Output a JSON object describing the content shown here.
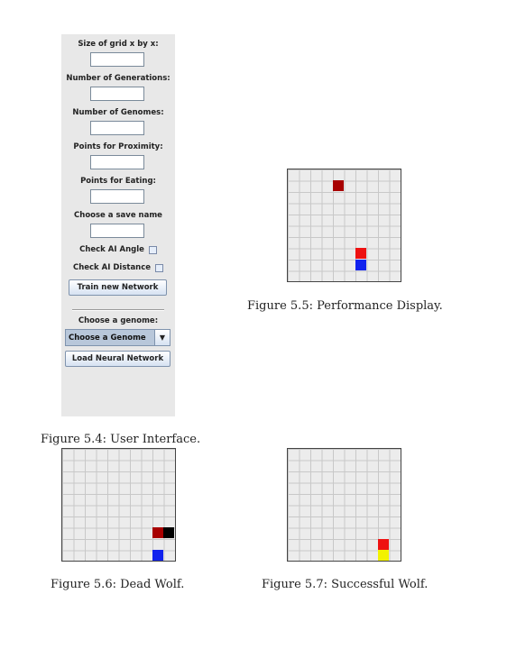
{
  "ui_panel": {
    "grid_size_label": "Size of grid x by x:",
    "grid_size_value": "",
    "generations_label": "Number of Generations:",
    "generations_value": "",
    "genomes_label": "Number of Genomes:",
    "genomes_value": "",
    "proximity_label": "Points for Proximity:",
    "proximity_value": "",
    "eating_label": "Points for Eating:",
    "eating_value": "",
    "save_name_label": "Choose a save name",
    "save_name_value": "",
    "check_angle_label": "Check AI Angle",
    "check_distance_label": "Check AI Distance",
    "train_button": "Train new Network",
    "choose_genome_label": "Choose a genome:",
    "genome_select_value": "Choose a Genome",
    "load_button": "Load Neural Network"
  },
  "captions": {
    "fig54": "Figure 5.4: User Interface.",
    "fig55": "Figure 5.5: Performance Display.",
    "fig56": "Figure 5.6: Dead Wolf.",
    "fig57": "Figure 5.7: Successful Wolf."
  },
  "colors": {
    "dark_red": "#a80000",
    "red": "#ee1111",
    "blue": "#1122ee",
    "black": "#000000",
    "yellow": "#f2f200"
  }
}
